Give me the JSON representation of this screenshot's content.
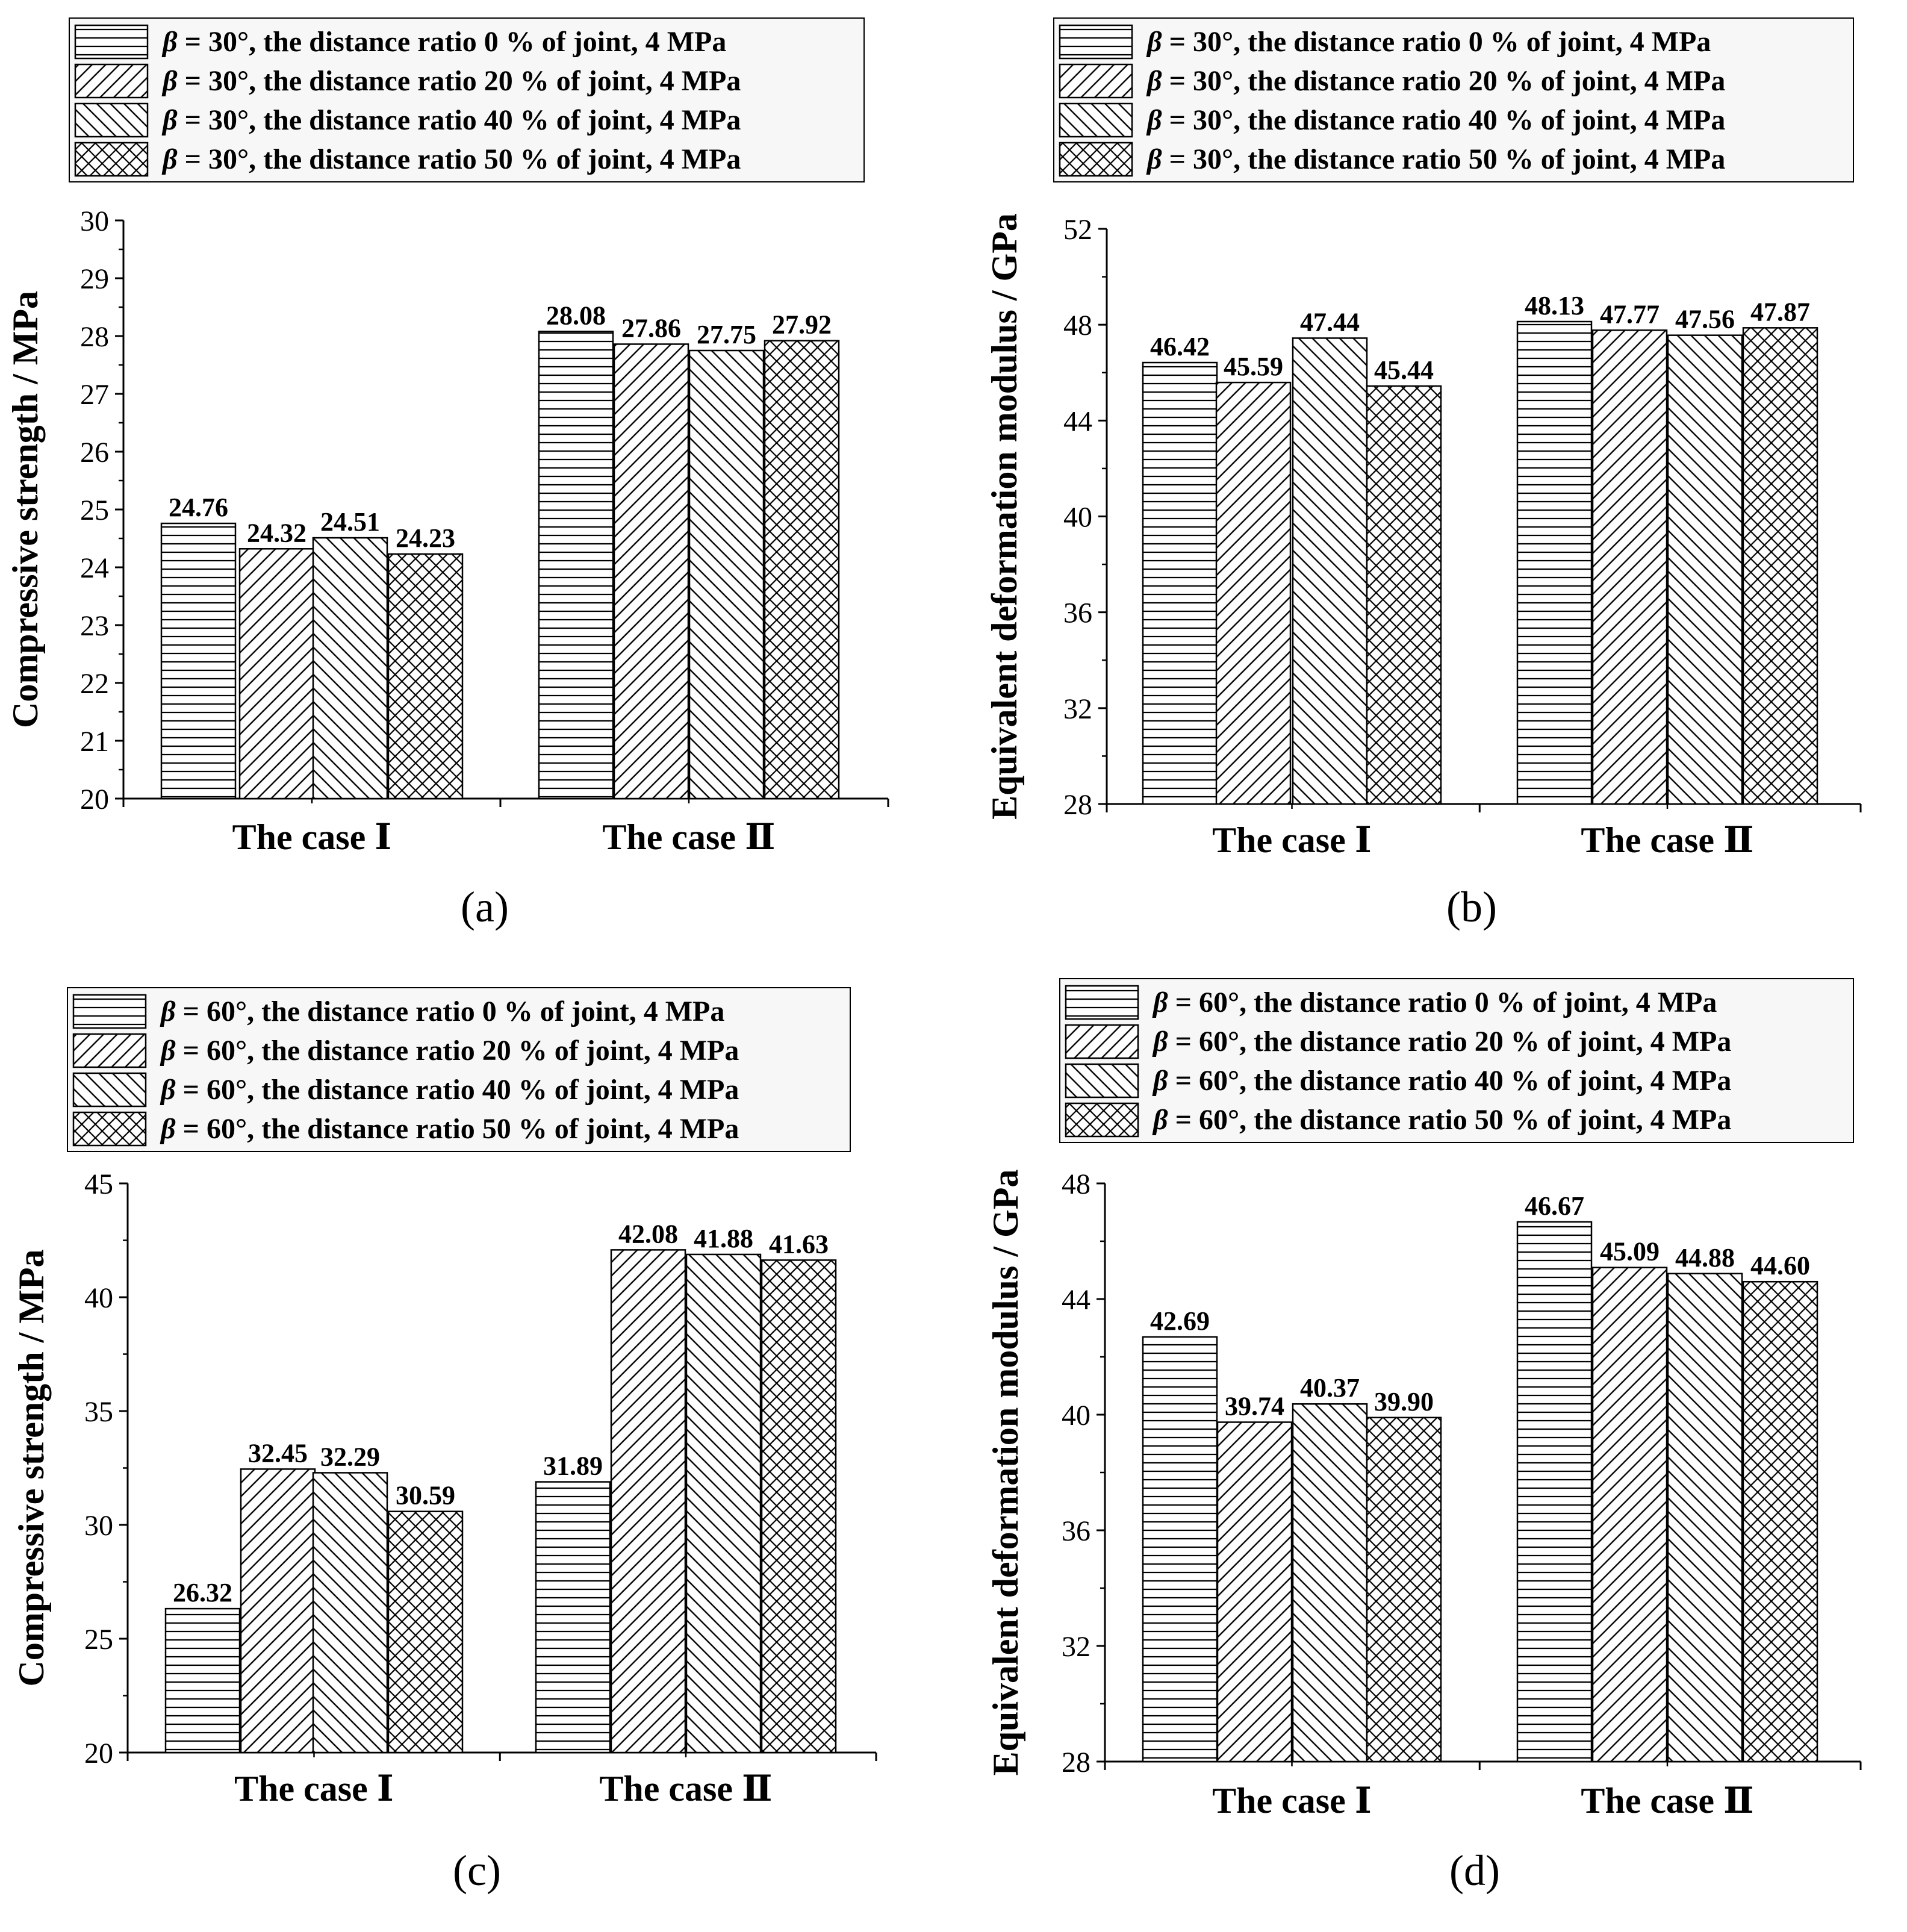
{
  "colors": {
    "ink": "#000000",
    "paper": "#ffffff",
    "legend_bg": "#f7f7f7"
  },
  "chart_data": [
    {
      "type": "bar",
      "panel": "(a)",
      "ylabel": "Compressive strength / MPa",
      "categories": [
        "The case Ⅰ",
        "The case Ⅱ"
      ],
      "ylim": [
        20,
        30
      ],
      "yticks": [
        20,
        21,
        22,
        23,
        24,
        25,
        26,
        27,
        28,
        29,
        30
      ],
      "legend_position": "top",
      "series": [
        {
          "name": "β = 30°,  the distance ratio  0 %  of  joint,  4 MPa",
          "hatch": "horizontal",
          "values": [
            24.76,
            28.08
          ]
        },
        {
          "name": "β = 30°,  the distance ratio  20 %  of  joint,  4 MPa",
          "hatch": "forward-diagonal",
          "values": [
            24.32,
            27.86
          ]
        },
        {
          "name": "β = 30°,  the distance ratio  40 %  of  joint,  4 MPa",
          "hatch": "back-diagonal",
          "values": [
            24.51,
            27.75
          ]
        },
        {
          "name": "β = 30°,  the distance ratio  50 %  of  joint,  4 MPa",
          "hatch": "cross",
          "values": [
            24.23,
            27.92
          ]
        }
      ],
      "value_labels": [
        [
          "24.76",
          "28.08"
        ],
        [
          "24.32",
          "27.86"
        ],
        [
          "24.51",
          "27.75"
        ],
        [
          "24.23",
          "27.92"
        ]
      ]
    },
    {
      "type": "bar",
      "panel": "(b)",
      "ylabel": "Equivalent deformation modulus / GPa",
      "categories": [
        "The case Ⅰ",
        "The case Ⅱ"
      ],
      "ylim": [
        28,
        52
      ],
      "yticks": [
        28,
        32,
        36,
        40,
        44,
        48,
        52
      ],
      "legend_position": "top",
      "series": [
        {
          "name": "β = 30°,  the distance ratio  0 %  of  joint,  4 MPa",
          "hatch": "horizontal",
          "values": [
            46.42,
            48.13
          ]
        },
        {
          "name": "β = 30°,  the distance ratio  20 %  of  joint,  4 MPa",
          "hatch": "forward-diagonal",
          "values": [
            45.59,
            47.77
          ]
        },
        {
          "name": "β = 30°,  the distance ratio  40 %  of  joint,  4 MPa",
          "hatch": "back-diagonal",
          "values": [
            47.44,
            47.56
          ]
        },
        {
          "name": "β = 30°,  the distance ratio  50 %  of  joint,  4 MPa",
          "hatch": "cross",
          "values": [
            45.44,
            47.87
          ]
        }
      ],
      "value_labels": [
        [
          "46.42",
          "48.13"
        ],
        [
          "45.59",
          "47.77"
        ],
        [
          "47.44",
          "47.56"
        ],
        [
          "45.44",
          "47.87"
        ]
      ]
    },
    {
      "type": "bar",
      "panel": "(c)",
      "ylabel": "Compressive strength / MPa",
      "categories": [
        "The case Ⅰ",
        "The case Ⅱ"
      ],
      "ylim": [
        20,
        45
      ],
      "yticks": [
        20,
        25,
        30,
        35,
        40,
        45
      ],
      "legend_position": "top",
      "series": [
        {
          "name": "β = 60°,  the distance ratio  0 %  of  joint,  4 MPa",
          "hatch": "horizontal",
          "values": [
            26.32,
            31.89
          ]
        },
        {
          "name": "β = 60°,  the distance ratio  20 %  of  joint,  4 MPa",
          "hatch": "forward-diagonal",
          "values": [
            32.45,
            42.08
          ]
        },
        {
          "name": "β = 60°,  the distance ratio  40 %  of  joint,  4 MPa",
          "hatch": "back-diagonal",
          "values": [
            32.29,
            41.88
          ]
        },
        {
          "name": "β = 60°,  the distance ratio  50 %  of  joint,  4 MPa",
          "hatch": "cross",
          "values": [
            30.59,
            41.63
          ]
        }
      ],
      "value_labels": [
        [
          "26.32",
          "31.89"
        ],
        [
          "32.45",
          "42.08"
        ],
        [
          "32.29",
          "41.88"
        ],
        [
          "30.59",
          "41.63"
        ]
      ]
    },
    {
      "type": "bar",
      "panel": "(d)",
      "ylabel": "Equivalent deformation modulus / GPa",
      "categories": [
        "The case Ⅰ",
        "The case Ⅱ"
      ],
      "ylim": [
        28,
        48
      ],
      "yticks": [
        28,
        32,
        36,
        40,
        44,
        48
      ],
      "legend_position": "top",
      "series": [
        {
          "name": "β = 60°,  the distance ratio  0 %  of  joint,  4 MPa",
          "hatch": "horizontal",
          "values": [
            42.69,
            46.67
          ]
        },
        {
          "name": "β = 60°,  the distance ratio  20 %  of  joint,  4 MPa",
          "hatch": "forward-diagonal",
          "values": [
            39.74,
            45.09
          ]
        },
        {
          "name": "β = 60°,  the distance ratio  40 %  of  joint,  4 MPa",
          "hatch": "back-diagonal",
          "values": [
            40.37,
            44.88
          ]
        },
        {
          "name": "β = 60°,  the distance ratio  50 %  of  joint,  4 MPa",
          "hatch": "cross",
          "values": [
            39.9,
            44.6
          ]
        }
      ],
      "value_labels": [
        [
          "42.69",
          "46.67"
        ],
        [
          "39.74",
          "45.09"
        ],
        [
          "40.37",
          "44.88"
        ],
        [
          "39.90",
          "44.60"
        ]
      ]
    }
  ]
}
